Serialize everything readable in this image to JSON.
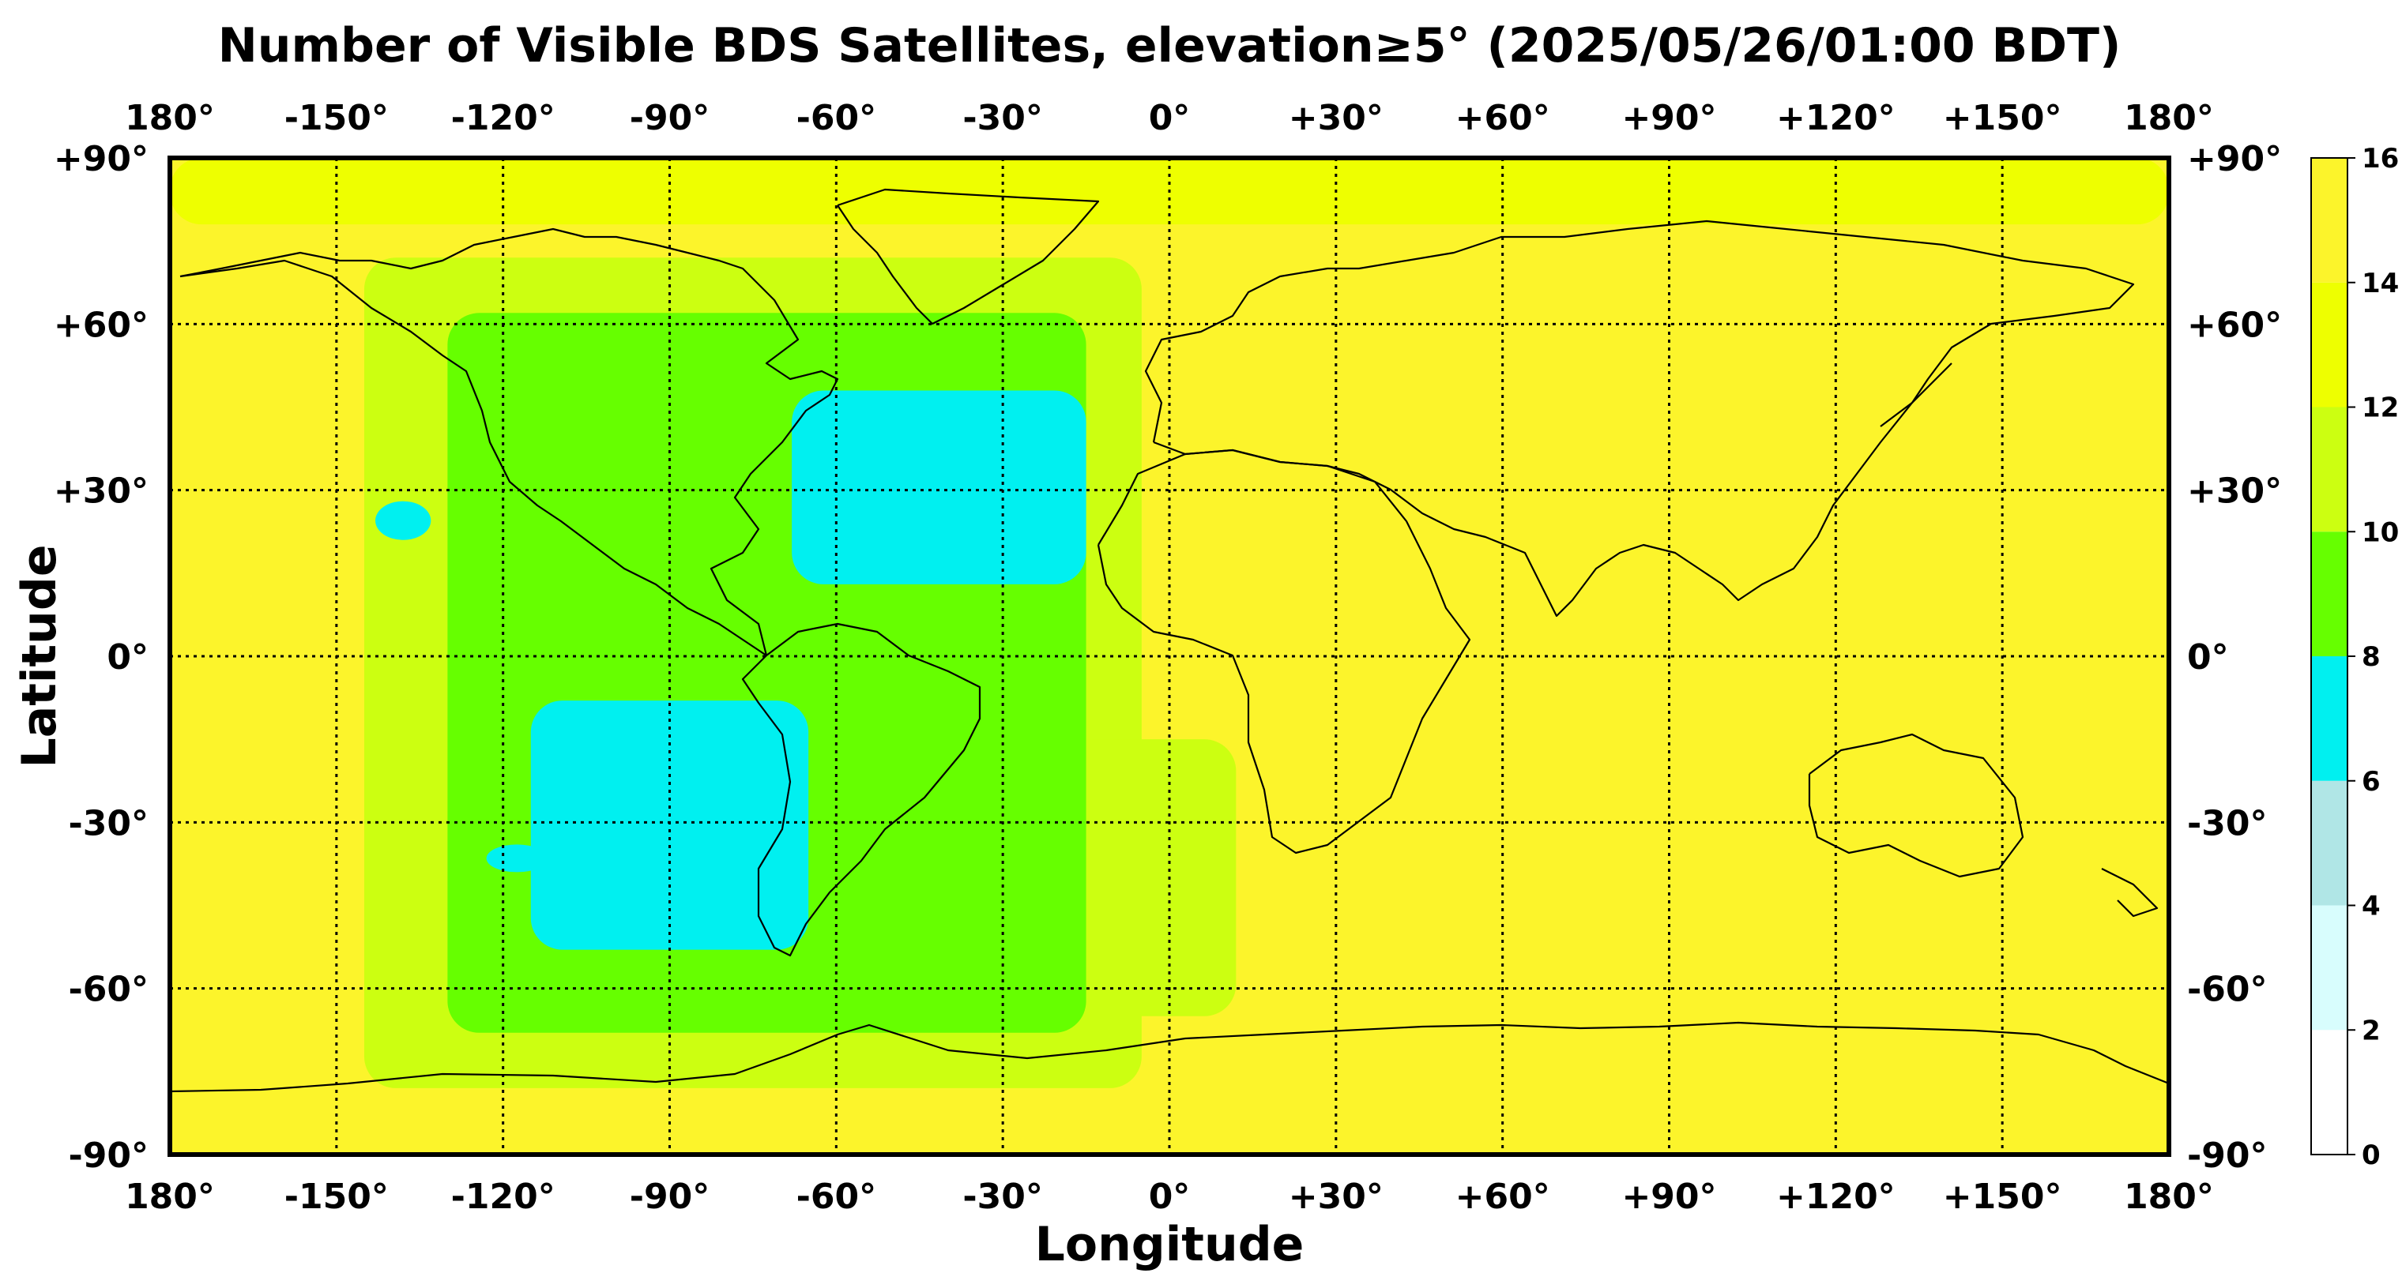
{
  "chart_data": {
    "type": "heatmap",
    "title": "Number of Visible BDS Satellites, elevation≥5° (2025/05/26/01:00 BDT)",
    "xlabel": "Longitude",
    "ylabel": "Latitude",
    "xlim": [
      -180,
      180
    ],
    "ylim": [
      -90,
      90
    ],
    "x_ticks": [
      {
        "value": -180,
        "label": "180°"
      },
      {
        "value": -150,
        "label": "-150°"
      },
      {
        "value": -120,
        "label": "-120°"
      },
      {
        "value": -90,
        "label": "-90°"
      },
      {
        "value": -60,
        "label": "-60°"
      },
      {
        "value": -30,
        "label": "-30°"
      },
      {
        "value": 0,
        "label": "0°"
      },
      {
        "value": 30,
        "label": "+30°"
      },
      {
        "value": 60,
        "label": "+60°"
      },
      {
        "value": 90,
        "label": "+90°"
      },
      {
        "value": 120,
        "label": "+120°"
      },
      {
        "value": 150,
        "label": "+150°"
      },
      {
        "value": 180,
        "label": "180°"
      }
    ],
    "y_ticks": [
      {
        "value": 90,
        "label": "+90°"
      },
      {
        "value": 60,
        "label": "+60°"
      },
      {
        "value": 30,
        "label": "+30°"
      },
      {
        "value": 0,
        "label": "0°"
      },
      {
        "value": -30,
        "label": "-30°"
      },
      {
        "value": -60,
        "label": "-60°"
      },
      {
        "value": -90,
        "label": "-90°"
      }
    ],
    "grid": true,
    "colorbar": {
      "placement": "right",
      "ticks": [
        "0",
        "2",
        "4",
        "6",
        "8",
        "10",
        "12",
        "14",
        "16"
      ],
      "bins": [
        {
          "from": 0,
          "to": 2,
          "color": "#ffffff"
        },
        {
          "from": 2,
          "to": 4,
          "color": "#d8fdfd"
        },
        {
          "from": 4,
          "to": 6,
          "color": "#b0e6e6"
        },
        {
          "from": 6,
          "to": 8,
          "color": "#00f0f0"
        },
        {
          "from": 8,
          "to": 10,
          "color": "#66ff00"
        },
        {
          "from": 10,
          "to": 12,
          "color": "#ccff11"
        },
        {
          "from": 12,
          "to": 14,
          "color": "#eeff00"
        },
        {
          "from": 14,
          "to": 16,
          "color": "#fcf42b"
        }
      ]
    },
    "background_value": 15,
    "regions": [
      {
        "name": "arctic-band",
        "value": 13,
        "lon": [
          -180,
          180
        ],
        "lat": [
          78,
          90
        ]
      },
      {
        "name": "east-pacific-amer-outer",
        "value": 11,
        "lon": [
          -145,
          -5
        ],
        "lat": [
          -78,
          72
        ]
      },
      {
        "name": "south-atlantic-outer",
        "value": 11,
        "lon": [
          -65,
          12
        ],
        "lat": [
          -65,
          -15
        ]
      },
      {
        "name": "americas-inner",
        "value": 9,
        "lon": [
          -130,
          -15
        ],
        "lat": [
          -68,
          62
        ]
      },
      {
        "name": "north-atlantic-cyan",
        "value": 7,
        "lon": [
          -68,
          -15
        ],
        "lat": [
          13,
          48
        ]
      },
      {
        "name": "south-pacific-cyan",
        "value": 7,
        "lon": [
          -115,
          -65
        ],
        "lat": [
          -53,
          -8
        ]
      },
      {
        "name": "small-cyan-pacific-north",
        "value": 7,
        "lon": [
          -143,
          -133
        ],
        "lat": [
          21,
          28
        ]
      },
      {
        "name": "small-cyan-pacific-south",
        "value": 7,
        "lon": [
          -123,
          -112
        ],
        "lat": [
          -39,
          -34
        ]
      }
    ]
  }
}
